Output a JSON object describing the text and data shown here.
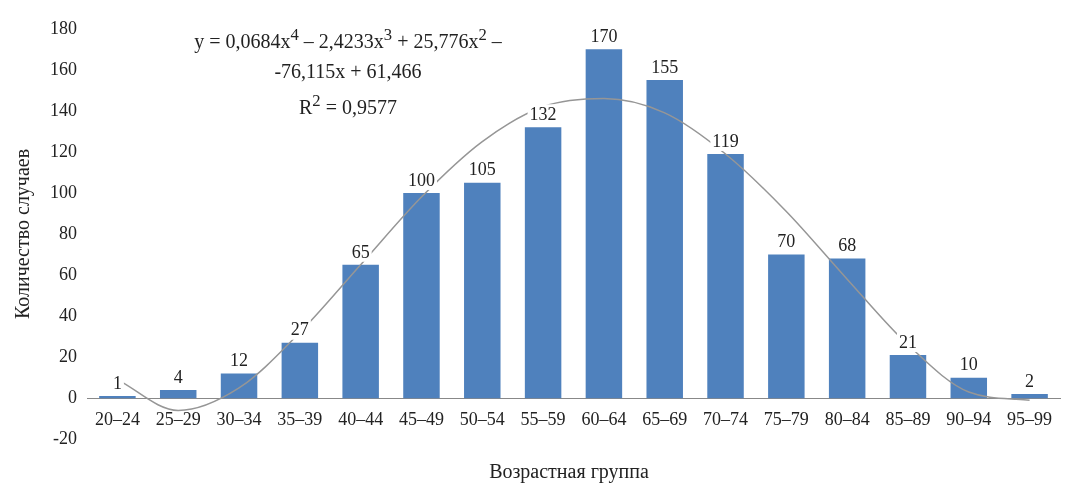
{
  "chart_data": {
    "type": "bar",
    "xlabel": "Возрастная группа",
    "ylabel": "Количество случаев",
    "categories": [
      "20–24",
      "25–29",
      "30–34",
      "35–39",
      "40–44",
      "45–49",
      "50–54",
      "55–59",
      "60–64",
      "65–69",
      "70–74",
      "75–79",
      "80–84",
      "85–89",
      "90–94",
      "95–99"
    ],
    "series": [
      {
        "color": "#4f81bd",
        "values": [
          1,
          4,
          12,
          27,
          65,
          100,
          105,
          132,
          170,
          155,
          119,
          70,
          68,
          21,
          10,
          2
        ],
        "value_labels": [
          "1",
          "4",
          "12",
          "27",
          "65",
          "100",
          "105",
          "132",
          "170",
          "155",
          "119",
          "70",
          "68",
          "21",
          "10",
          "2"
        ]
      },
      {
        "type": "line",
        "color": "#969696",
        "values": [
          9,
          -6,
          5,
          32,
          65,
          98,
          125,
          142,
          146,
          139,
          119,
          91,
          58,
          26,
          3,
          -1
        ]
      }
    ],
    "ylim": [
      -20,
      180
    ],
    "yticks": [
      -20,
      0,
      20,
      40,
      60,
      80,
      100,
      120,
      140,
      160,
      180
    ],
    "grid": false,
    "legend": false,
    "marker": "none",
    "annotations": [
      "y = 0,0684x$^{4}$ – 2,4233x$^{3}$ + 25,776x$^{2}$ –",
      "-76,115x + 61,466",
      "R$^{2}$ = 0,9577"
    ]
  }
}
